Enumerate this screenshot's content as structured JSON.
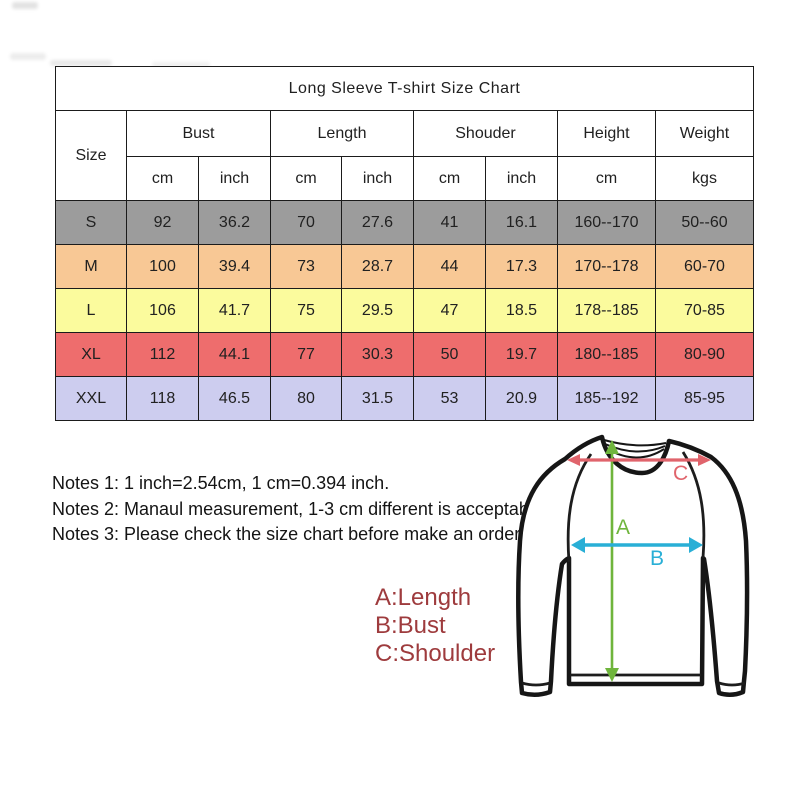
{
  "title": "Long Sleeve T-shirt Size Chart",
  "table": {
    "corner_label": "Size",
    "column_groups": [
      {
        "label": "Bust",
        "subs": [
          "cm",
          "inch"
        ]
      },
      {
        "label": "Length",
        "subs": [
          "cm",
          "inch"
        ]
      },
      {
        "label": "Shouder",
        "subs": [
          "cm",
          "inch"
        ]
      },
      {
        "label": "Height",
        "subs": [
          "cm"
        ]
      },
      {
        "label": "Weight",
        "subs": [
          "kgs"
        ]
      }
    ],
    "rows": [
      {
        "size": "S",
        "bg": "#9c9c9c",
        "cells": [
          "92",
          "36.2",
          "70",
          "27.6",
          "41",
          "16.1",
          "160--170",
          "50--60"
        ]
      },
      {
        "size": "M",
        "bg": "#f8c895",
        "cells": [
          "100",
          "39.4",
          "73",
          "28.7",
          "44",
          "17.3",
          "170--178",
          "60-70"
        ]
      },
      {
        "size": "L",
        "bg": "#fbfb9d",
        "cells": [
          "106",
          "41.7",
          "75",
          "29.5",
          "47",
          "18.5",
          "178--185",
          "70-85"
        ]
      },
      {
        "size": "XL",
        "bg": "#ee6d6d",
        "cells": [
          "112",
          "44.1",
          "77",
          "30.3",
          "50",
          "19.7",
          "180--185",
          "80-90"
        ]
      },
      {
        "size": "XXL",
        "bg": "#cdcdef",
        "cells": [
          "118",
          "46.5",
          "80",
          "31.5",
          "53",
          "20.9",
          "185--192",
          "85-95"
        ]
      }
    ]
  },
  "notes": [
    "Notes 1: 1 inch=2.54cm, 1 cm=0.394 inch.",
    "Notes 2: Manaul measurement, 1-3 cm different is acceptable.",
    "Notes 3: Please check the size chart before make an order."
  ],
  "legend": [
    "A:Length",
    "B:Bust",
    "C:Shoulder"
  ],
  "diagram": {
    "labels": {
      "a": "A",
      "b": "B",
      "c": "C"
    },
    "colors": {
      "length_arrow": "#6fb53c",
      "bust_arrow": "#29afd6",
      "shoulder_arrow": "#e0646c",
      "outline": "#161616"
    }
  },
  "colors": {
    "title_red": "#ca2128",
    "legend_red": "#9e3b3d"
  }
}
